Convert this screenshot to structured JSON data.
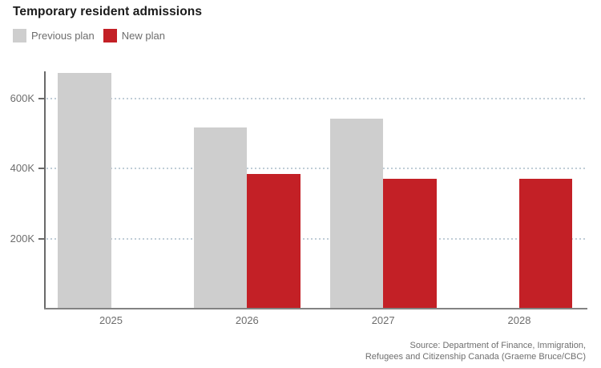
{
  "title": "Temporary resident admissions",
  "legend": [
    {
      "label": "Previous plan",
      "color": "#cecece"
    },
    {
      "label": "New plan",
      "color": "#c32026"
    }
  ],
  "source": {
    "line1": "Source: Department of Finance, Immigration,",
    "line2": "Refugees and Citizenship Canada (Graeme Bruce/CBC)"
  },
  "colors": {
    "previous_plan": "#cecece",
    "new_plan": "#c32026",
    "gridline": "#c0cdd7",
    "axis": "#6a6a6a",
    "muted_text": "#6d6d6d",
    "title_text": "#1a1a1a"
  },
  "chart_data": {
    "type": "bar",
    "title": "Temporary resident admissions",
    "categories": [
      "2025",
      "2026",
      "2027",
      "2028"
    ],
    "series": [
      {
        "name": "Previous plan",
        "color": "#cecece",
        "values": [
          673650,
          516600,
          543600,
          null
        ]
      },
      {
        "name": "New plan",
        "color": "#c32026",
        "values": [
          null,
          385000,
          370000,
          370000
        ]
      }
    ],
    "xlabel": "",
    "ylabel": "",
    "ylim": [
      0,
      680000
    ],
    "y_ticks": [
      {
        "value": 200000,
        "label": "200K"
      },
      {
        "value": 400000,
        "label": "400K"
      },
      {
        "value": 600000,
        "label": "600K"
      }
    ],
    "grid": "horizontal-dotted",
    "legend_position": "top-left"
  }
}
